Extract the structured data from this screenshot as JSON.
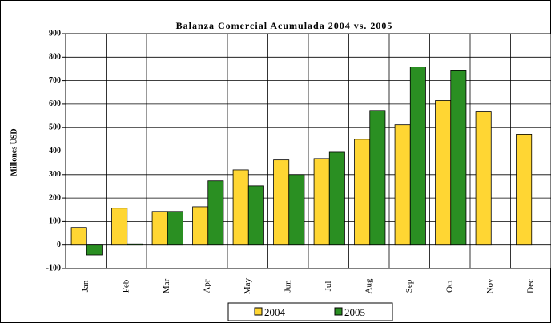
{
  "chart_data": {
    "type": "bar",
    "title": "Balanza Comercial Acumulada 2004 vs. 2005",
    "y_label": "Millones USD",
    "categories": [
      "Jan",
      "Feb",
      "Mar",
      "Apr",
      "May",
      "Jun",
      "Jul",
      "Aug",
      "Sep",
      "Oct",
      "Nov",
      "Dec"
    ],
    "series": [
      {
        "name": "2004",
        "color": "#ffd633",
        "values": [
          75,
          157,
          143,
          163,
          320,
          362,
          368,
          450,
          512,
          615,
          567,
          472
        ]
      },
      {
        "name": "2005",
        "color": "#2a8f22",
        "values": [
          -42,
          5,
          143,
          273,
          252,
          300,
          395,
          573,
          758,
          745,
          null,
          null
        ]
      }
    ],
    "ylim": [
      -100,
      900
    ],
    "yticks": [
      -100,
      0,
      100,
      200,
      300,
      400,
      500,
      600,
      700,
      800,
      900
    ],
    "grid": true,
    "legend": "bottom"
  }
}
